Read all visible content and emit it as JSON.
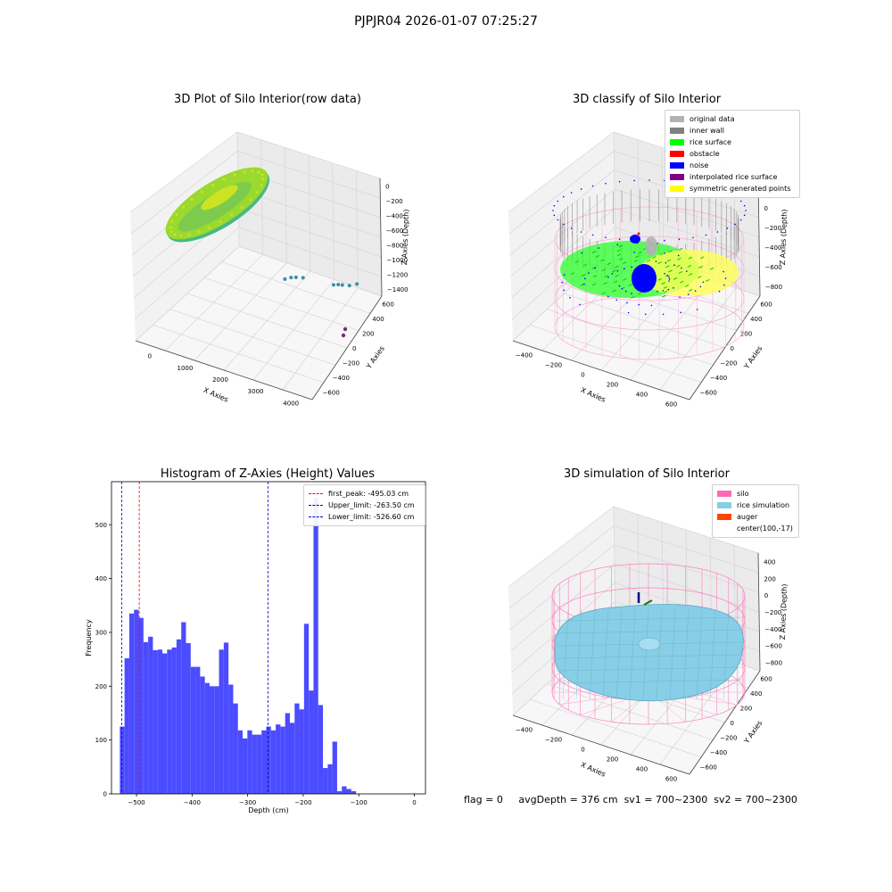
{
  "header": {
    "title": "PJPJR04 2026-01-07 07:25:27"
  },
  "status": {
    "flag": "flag = 0",
    "avg_depth": "avgDepth = 376 cm",
    "sv1": "sv1 = 700~2300",
    "sv2": "sv2 = 700~2300"
  },
  "chart_data": [
    {
      "type": "scatter",
      "title": "3D Plot of Silo Interior(row data)",
      "xlabel": "X Axies",
      "ylabel": "Y Axies",
      "zlabel": "Z Axies (Depth)",
      "x_ticks": [
        "0",
        "1000",
        "2000",
        "3000",
        "4000"
      ],
      "y_ticks": [
        "600",
        "400",
        "200",
        "0",
        "−200",
        "−400",
        "−600"
      ],
      "z_ticks": [
        "0",
        "−200",
        "−400",
        "−600",
        "−800",
        "−1000",
        "−1200",
        "−1400"
      ],
      "colors": {
        "main": "#9ad92e",
        "teal": "#3a8ea6",
        "purple": "#7a2a7a"
      },
      "outlier_points": [
        {
          "x": 2400,
          "y": -100,
          "z": -1000
        },
        {
          "x": 2500,
          "y": -150,
          "z": -1010
        },
        {
          "x": 2600,
          "y": -180,
          "z": -1020
        },
        {
          "x": 2750,
          "y": -220,
          "z": -1040
        },
        {
          "x": 3500,
          "y": -350,
          "z": -1150
        },
        {
          "x": 3600,
          "y": -380,
          "z": -1160
        },
        {
          "x": 3700,
          "y": -400,
          "z": -1170
        },
        {
          "x": 3900,
          "y": -420,
          "z": -1170
        },
        {
          "x": 4100,
          "y": -450,
          "z": -1150
        }
      ]
    },
    {
      "type": "scatter",
      "title": "3D classify of Silo Interior",
      "xlabel": "X Axies",
      "ylabel": "Y Axies",
      "zlabel": "Z Axies (Depth)",
      "x_ticks": [
        "−400",
        "−200",
        "0",
        "200",
        "400",
        "600"
      ],
      "y_ticks": [
        "600",
        "400",
        "200",
        "0",
        "−200",
        "−400",
        "−600"
      ],
      "z_ticks": [
        "200",
        "0",
        "−200",
        "−400",
        "−600",
        "−800"
      ],
      "legend": [
        {
          "label": "original data",
          "color": "#b3b3b3"
        },
        {
          "label": "inner wall",
          "color": "#808080"
        },
        {
          "label": "rice surface",
          "color": "#00ff00"
        },
        {
          "label": "obstacle",
          "color": "#ff0000"
        },
        {
          "label": "noise",
          "color": "#0000ff"
        },
        {
          "label": "interpolated rice surface",
          "color": "#800080"
        },
        {
          "label": "symmetric generated points",
          "color": "#ffff00"
        }
      ],
      "legend_placement": "top-right"
    },
    {
      "type": "bar",
      "title": "Histogram of Z-Axies (Height) Values",
      "xlabel": "Depth (cm)",
      "ylabel": "Frequency",
      "bin_edges_start": -530,
      "bin_width": 8.5,
      "values": [
        125,
        252,
        335,
        342,
        327,
        282,
        292,
        267,
        268,
        261,
        268,
        272,
        287,
        319,
        280,
        236,
        236,
        218,
        206,
        200,
        200,
        268,
        281,
        203,
        168,
        118,
        103,
        118,
        110,
        110,
        118,
        125,
        118,
        129,
        125,
        150,
        132,
        168,
        157,
        316,
        192,
        550,
        165,
        48,
        55,
        97,
        5,
        14,
        9,
        5
      ],
      "xlim": [
        -545,
        20
      ],
      "ylim": [
        0,
        580
      ],
      "x_ticks": [
        -500,
        -400,
        -300,
        -200,
        -100,
        0
      ],
      "y_ticks": [
        0,
        100,
        200,
        300,
        400,
        500
      ],
      "color": "#4b4bff",
      "vlines": [
        {
          "label": "first_peak: -495.03 cm",
          "x": -495.03,
          "color": "#ff0000"
        },
        {
          "label": "Upper_limit: -263.50 cm",
          "x": -263.5,
          "color": "#0000c0"
        },
        {
          "label": "Lower_limit: -526.60 cm",
          "x": -526.6,
          "color": "#0000c0"
        }
      ],
      "legend_placement": "top-right"
    },
    {
      "type": "area",
      "title": "3D simulation of Silo Interior",
      "xlabel": "X Axies",
      "ylabel": "Y Axies",
      "zlabel": "Z Axies (Depth)",
      "x_ticks": [
        "−400",
        "−200",
        "0",
        "200",
        "400",
        "600"
      ],
      "y_ticks": [
        "600",
        "400",
        "200",
        "0",
        "−200",
        "−400",
        "−600"
      ],
      "z_ticks": [
        "400",
        "200",
        "0",
        "−200",
        "−400",
        "−600",
        "−800"
      ],
      "legend": [
        {
          "label": "silo",
          "color": "#ff69b4"
        },
        {
          "label": "rice simulation",
          "color": "#87cee6"
        },
        {
          "label": "auger",
          "color": "#ff4500"
        },
        {
          "label": "center(100,-17)",
          "color": ""
        }
      ],
      "legend_placement": "top-right"
    }
  ]
}
